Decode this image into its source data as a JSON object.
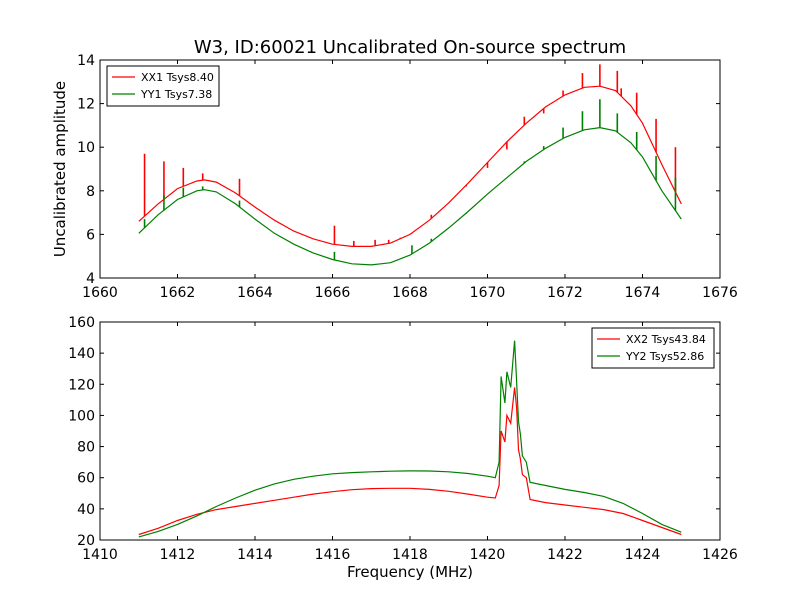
{
  "figure_title": "W3, ID:60021 Uncalibrated On-source spectrum",
  "colors": {
    "series_red": "#ff0000",
    "series_green": "#008000",
    "axes": "#000000",
    "background": "#ffffff"
  },
  "chart_data": [
    {
      "type": "line",
      "title": "W3, ID:60021 Uncalibrated On-source spectrum",
      "xlabel": "",
      "ylabel": "Uncalibrated amplitude",
      "xlim": [
        1660,
        1676
      ],
      "ylim": [
        4,
        14
      ],
      "xticks": [
        1660,
        1662,
        1664,
        1666,
        1668,
        1670,
        1672,
        1674,
        1676
      ],
      "yticks": [
        4,
        6,
        8,
        10,
        12,
        14
      ],
      "grid": false,
      "legend": "top-left",
      "series": [
        {
          "name": "XX1 Tsys8.40",
          "color": "#ff0000",
          "x": [
            1661.0,
            1661.5,
            1662.0,
            1662.5,
            1662.7,
            1663.0,
            1663.5,
            1664.0,
            1664.5,
            1665.0,
            1665.5,
            1666.0,
            1666.5,
            1667.0,
            1667.5,
            1668.0,
            1668.5,
            1669.0,
            1669.5,
            1670.0,
            1670.5,
            1671.0,
            1671.5,
            1672.0,
            1672.5,
            1672.9,
            1673.3,
            1673.7,
            1674.0,
            1674.5,
            1675.0
          ],
          "y": [
            6.6,
            7.4,
            8.1,
            8.45,
            8.5,
            8.4,
            7.9,
            7.25,
            6.65,
            6.15,
            5.8,
            5.55,
            5.45,
            5.45,
            5.6,
            6.0,
            6.65,
            7.45,
            8.35,
            9.3,
            10.25,
            11.1,
            11.85,
            12.4,
            12.75,
            12.8,
            12.6,
            11.9,
            11.1,
            9.2,
            7.4
          ],
          "spikes": [
            {
              "x": 1661.15,
              "y": 9.7
            },
            {
              "x": 1661.65,
              "y": 9.35
            },
            {
              "x": 1662.15,
              "y": 9.05
            },
            {
              "x": 1662.65,
              "y": 8.8
            },
            {
              "x": 1663.6,
              "y": 8.55
            },
            {
              "x": 1666.05,
              "y": 6.4
            },
            {
              "x": 1666.55,
              "y": 5.7
            },
            {
              "x": 1667.1,
              "y": 5.75
            },
            {
              "x": 1667.45,
              "y": 5.75
            },
            {
              "x": 1667.75,
              "y": 5.85
            },
            {
              "x": 1668.05,
              "y": 6.05
            },
            {
              "x": 1668.55,
              "y": 6.9
            },
            {
              "x": 1669.0,
              "y": 7.45
            },
            {
              "x": 1669.45,
              "y": 8.2
            },
            {
              "x": 1670.0,
              "y": 9.05
            },
            {
              "x": 1670.5,
              "y": 9.9
            },
            {
              "x": 1670.95,
              "y": 11.4
            },
            {
              "x": 1671.45,
              "y": 11.55
            },
            {
              "x": 1671.95,
              "y": 12.6
            },
            {
              "x": 1672.45,
              "y": 13.4
            },
            {
              "x": 1672.9,
              "y": 13.8
            },
            {
              "x": 1673.35,
              "y": 13.5
            },
            {
              "x": 1673.45,
              "y": 12.7
            },
            {
              "x": 1673.85,
              "y": 12.5
            },
            {
              "x": 1674.35,
              "y": 11.3
            },
            {
              "x": 1674.85,
              "y": 10.0
            }
          ]
        },
        {
          "name": "YY1 Tsys7.38",
          "color": "#008000",
          "x": [
            1661.0,
            1661.5,
            1662.0,
            1662.5,
            1662.7,
            1663.0,
            1663.5,
            1664.0,
            1664.5,
            1665.0,
            1665.5,
            1666.0,
            1666.5,
            1667.0,
            1667.5,
            1668.0,
            1668.5,
            1669.0,
            1669.5,
            1670.0,
            1670.5,
            1671.0,
            1671.5,
            1672.0,
            1672.5,
            1672.9,
            1673.3,
            1673.7,
            1674.0,
            1674.5,
            1675.0
          ],
          "y": [
            6.05,
            6.9,
            7.6,
            8.0,
            8.05,
            7.95,
            7.4,
            6.7,
            6.05,
            5.55,
            5.15,
            4.85,
            4.65,
            4.6,
            4.7,
            5.05,
            5.6,
            6.3,
            7.05,
            7.85,
            8.6,
            9.35,
            9.95,
            10.45,
            10.8,
            10.9,
            10.75,
            10.2,
            9.55,
            8.0,
            6.7
          ],
          "spikes": [
            {
              "x": 1661.15,
              "y": 6.7
            },
            {
              "x": 1661.65,
              "y": 7.8
            },
            {
              "x": 1662.15,
              "y": 8.15
            },
            {
              "x": 1662.65,
              "y": 8.2
            },
            {
              "x": 1663.6,
              "y": 7.55
            },
            {
              "x": 1666.05,
              "y": 5.2
            },
            {
              "x": 1668.05,
              "y": 5.5
            },
            {
              "x": 1668.55,
              "y": 5.8
            },
            {
              "x": 1669.45,
              "y": 6.95
            },
            {
              "x": 1670.5,
              "y": 8.6
            },
            {
              "x": 1670.95,
              "y": 9.35
            },
            {
              "x": 1671.45,
              "y": 10.05
            },
            {
              "x": 1671.95,
              "y": 10.9
            },
            {
              "x": 1672.45,
              "y": 11.65
            },
            {
              "x": 1672.9,
              "y": 12.2
            },
            {
              "x": 1673.35,
              "y": 11.55
            },
            {
              "x": 1673.85,
              "y": 10.7
            },
            {
              "x": 1674.35,
              "y": 9.6
            },
            {
              "x": 1674.85,
              "y": 8.6
            }
          ]
        }
      ]
    },
    {
      "type": "line",
      "title": "",
      "xlabel": "Frequency (MHz)",
      "ylabel": "",
      "xlim": [
        1410,
        1426
      ],
      "ylim": [
        20,
        160
      ],
      "xticks": [
        1410,
        1412,
        1414,
        1416,
        1418,
        1420,
        1422,
        1424,
        1426
      ],
      "yticks": [
        20,
        40,
        60,
        80,
        100,
        120,
        140,
        160
      ],
      "grid": false,
      "legend": "top-right",
      "series": [
        {
          "name": "XX2 Tsys43.84",
          "color": "#ff0000",
          "x": [
            1411.0,
            1411.5,
            1412.0,
            1412.5,
            1413.0,
            1413.5,
            1414.0,
            1414.5,
            1415.0,
            1415.5,
            1416.0,
            1416.5,
            1417.0,
            1417.5,
            1418.0,
            1418.5,
            1419.0,
            1419.5,
            1420.0,
            1420.2,
            1420.3,
            1420.35,
            1420.45,
            1420.5,
            1420.6,
            1420.7,
            1420.75,
            1420.8,
            1420.85,
            1420.9,
            1421.0,
            1421.1,
            1421.5,
            1422.0,
            1422.5,
            1423.0,
            1423.5,
            1424.0,
            1424.5,
            1425.0
          ],
          "y": [
            23.5,
            27.5,
            32.5,
            36.5,
            39.5,
            41.5,
            43.5,
            45.5,
            47.5,
            49.5,
            51.0,
            52.3,
            53.0,
            53.2,
            53.2,
            52.5,
            51.3,
            49.5,
            47.5,
            47.0,
            55.0,
            90.0,
            83.0,
            100.0,
            95.0,
            118.0,
            105.0,
            78.0,
            72.0,
            62.0,
            60.0,
            46.0,
            44.0,
            42.5,
            41.0,
            39.5,
            37.0,
            32.5,
            28.0,
            23.5
          ]
        },
        {
          "name": "YY2 Tsys52.86",
          "color": "#008000",
          "x": [
            1411.0,
            1411.5,
            1412.0,
            1412.5,
            1413.0,
            1413.5,
            1414.0,
            1414.5,
            1415.0,
            1415.5,
            1416.0,
            1416.5,
            1417.0,
            1417.5,
            1418.0,
            1418.5,
            1419.0,
            1419.5,
            1420.0,
            1420.2,
            1420.3,
            1420.35,
            1420.45,
            1420.5,
            1420.6,
            1420.7,
            1420.75,
            1420.8,
            1420.85,
            1420.9,
            1421.0,
            1421.1,
            1421.5,
            1422.0,
            1422.5,
            1423.0,
            1423.5,
            1424.0,
            1424.5,
            1425.0
          ],
          "y": [
            22.0,
            25.5,
            30.0,
            35.5,
            41.5,
            47.0,
            52.0,
            56.0,
            59.0,
            61.0,
            62.5,
            63.3,
            63.8,
            64.2,
            64.4,
            64.3,
            63.8,
            62.7,
            61.0,
            60.0,
            70.0,
            125.0,
            108.0,
            128.0,
            118.0,
            148.0,
            122.0,
            96.0,
            88.0,
            74.0,
            70.0,
            57.0,
            55.0,
            52.5,
            50.5,
            48.0,
            43.5,
            37.0,
            30.0,
            25.0
          ]
        }
      ]
    }
  ]
}
